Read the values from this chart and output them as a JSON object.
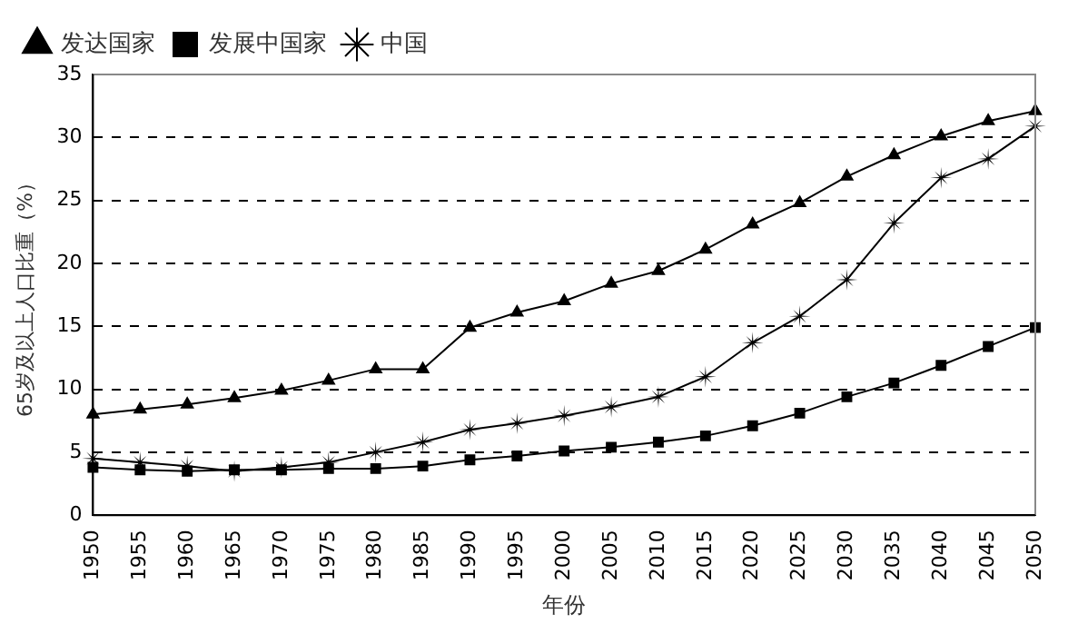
{
  "chart_data": {
    "type": "line",
    "xlabel": "年份",
    "ylabel": "65岁及以上人口比重（%）",
    "categories": [
      "1950",
      "1955",
      "1960",
      "1965",
      "1970",
      "1975",
      "1980",
      "1985",
      "1990",
      "1995",
      "2000",
      "2005",
      "2010",
      "2015",
      "2020",
      "2025",
      "2030",
      "2035",
      "2040",
      "2045",
      "2050"
    ],
    "series": [
      {
        "name": "发达国家",
        "color": "#000000",
        "marker": "triangle",
        "values": [
          8.0,
          8.4,
          8.8,
          9.3,
          9.9,
          10.7,
          11.6,
          11.6,
          14.9,
          16.1,
          17.0,
          18.4,
          19.4,
          21.1,
          23.1,
          24.8,
          26.9,
          28.6,
          30.1,
          31.3,
          32.1
        ]
      },
      {
        "name": "发展中国家",
        "color": "#000000",
        "marker": "square",
        "values": [
          3.8,
          3.6,
          3.5,
          3.6,
          3.6,
          3.7,
          3.7,
          3.9,
          4.4,
          4.7,
          5.1,
          5.4,
          5.8,
          6.3,
          7.1,
          8.1,
          9.4,
          10.5,
          11.9,
          13.4,
          14.9
        ]
      },
      {
        "name": "中国",
        "color": "#000000",
        "marker": "star",
        "values": [
          4.5,
          4.2,
          3.9,
          3.5,
          3.8,
          4.2,
          5.0,
          5.8,
          6.8,
          7.3,
          7.9,
          8.6,
          9.4,
          11.0,
          13.7,
          15.8,
          18.7,
          23.2,
          26.8,
          28.3,
          30.9
        ]
      }
    ],
    "ylim": [
      0,
      35
    ],
    "yticks": [
      0,
      5,
      10,
      15,
      20,
      25,
      30,
      35
    ],
    "grid": "y",
    "legend": "top left"
  }
}
